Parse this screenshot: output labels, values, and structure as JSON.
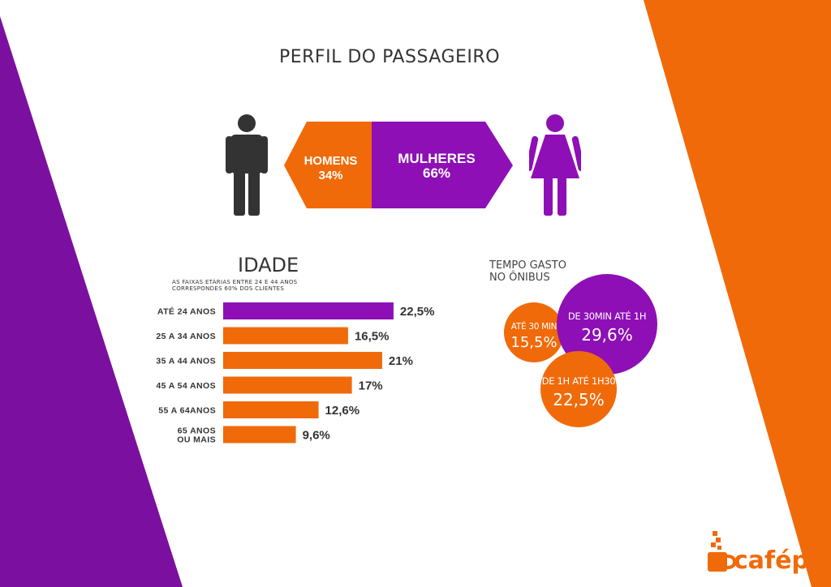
{
  "title": "PERFIL DO PASSAGEIRO",
  "colors": {
    "purple": "#8E0FB5",
    "orange": "#F06A0A",
    "dark": "#333333"
  },
  "icons": {
    "male": "man-icon",
    "female": "woman-icon",
    "logo": "cafepix-logo-icon"
  },
  "gender": {
    "homens_label": "HOMENS",
    "homens_value": "34%",
    "mulheres_label": "MULHERES",
    "mulheres_value": "66%"
  },
  "idade": {
    "title": "IDADE",
    "note_line1": "AS FAIXAS ETÁRIAS ENTRE 24 E 44 ANOS",
    "note_line2": "CORRESPONDES 60% DOS CLIENTES"
  },
  "tempo": {
    "title_line1": "TEMPO GASTO",
    "title_line2": "NO ÔNIBUS"
  },
  "logo_text": "cafépix",
  "chart_data": [
    {
      "type": "bar",
      "title": "IDADE",
      "orientation": "horizontal",
      "categories": [
        [
          "ATÉ 24 ANOS"
        ],
        [
          "25 A 34 ANOS"
        ],
        [
          "35 A 44 ANOS"
        ],
        [
          "45 A 54 ANOS"
        ],
        [
          "55 A 64ANOS"
        ],
        [
          "65 ANOS",
          "OU MAIS"
        ]
      ],
      "values": [
        22.5,
        16.5,
        21,
        17,
        12.6,
        9.6
      ],
      "value_labels": [
        "22,5%",
        "16,5%",
        "21%",
        "17%",
        "12,6%",
        "9,6%"
      ],
      "highlight_index": 0
    },
    {
      "type": "bubble",
      "title": "TEMPO GASTO NO ÔNIBUS",
      "items": [
        {
          "label": "ATÉ 30 MIN",
          "value": 15.5,
          "value_label": "15,5%",
          "color": "#F06A0A"
        },
        {
          "label": "DE 30MIN ATÉ 1H",
          "value": 29.6,
          "value_label": "29,6%",
          "color": "#8E0FB5"
        },
        {
          "label": "DE 1H ATÉ 1H30",
          "value": 22.5,
          "value_label": "22,5%",
          "color": "#F06A0A"
        }
      ]
    },
    {
      "type": "bar",
      "title": "PERFIL DO PASSAGEIRO",
      "categories": [
        "HOMENS",
        "MULHERES"
      ],
      "values": [
        34,
        66
      ]
    }
  ]
}
